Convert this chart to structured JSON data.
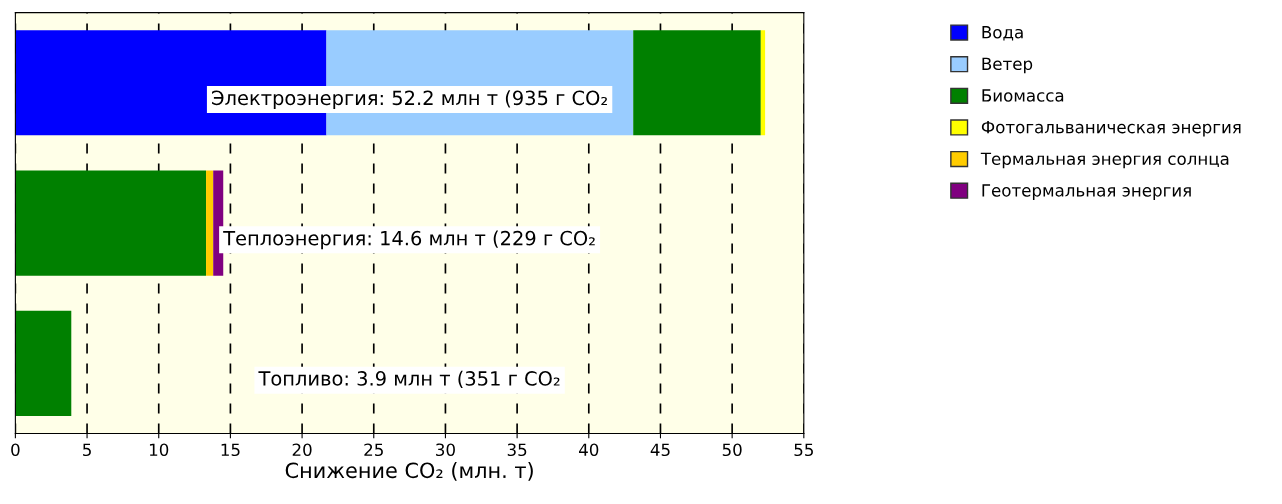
{
  "chart_data": {
    "type": "bar",
    "orientation": "horizontal",
    "stacked": true,
    "categories": [
      null,
      null,
      null
    ],
    "series": [
      {
        "name": "Вода",
        "color": "#0000ff",
        "values": [
          21.7,
          0,
          0
        ]
      },
      {
        "name": "Ветер",
        "color": "#99ccff",
        "values": [
          21.4,
          0,
          0
        ]
      },
      {
        "name": "Биомасса",
        "color": "#008000",
        "values": [
          8.9,
          13.3,
          3.9
        ]
      },
      {
        "name": "Фотогальваническая энергия",
        "color": "#ffff00",
        "values": [
          0.3,
          0,
          0
        ]
      },
      {
        "name": "Термальная энергия солнца",
        "color": "#ffcc00",
        "values": [
          0,
          0.5,
          0
        ]
      },
      {
        "name": "Геотермальная энергия",
        "color": "#800080",
        "values": [
          0,
          0.7,
          0
        ]
      }
    ],
    "xlim": [
      0,
      55
    ],
    "xticks": [
      0,
      5,
      10,
      15,
      20,
      25,
      30,
      35,
      40,
      45,
      50,
      55
    ],
    "xlabel": "Снижение CO₂ (млн. т)",
    "annotations": [
      "Электроэнергия: 52.2 млн т (935 г CO₂",
      "Теплоэнергия: 14.6 млн т (229 г CO₂",
      "Топливо: 3.9 млн т (351 г CO₂"
    ],
    "grid": "x",
    "legend": "right"
  }
}
